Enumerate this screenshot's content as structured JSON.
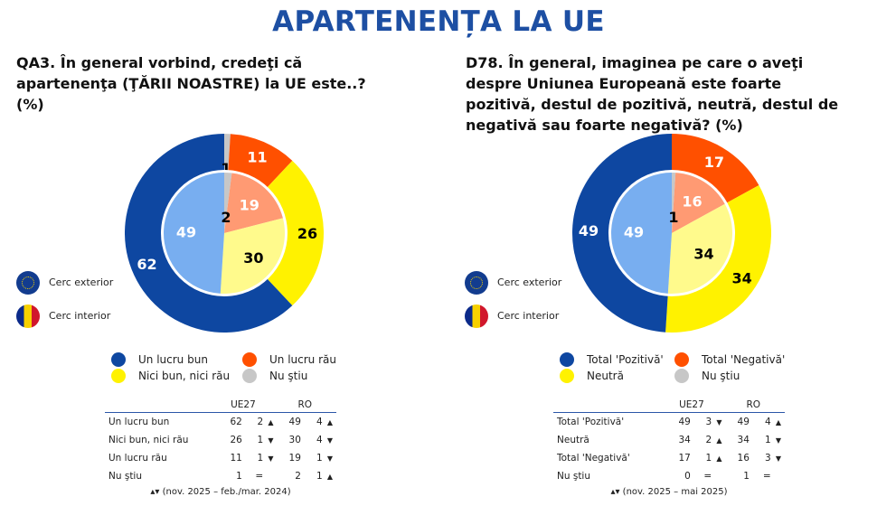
{
  "title": "APARTENENȚA LA UE",
  "ring_legend": {
    "outer": "Cerc exterior",
    "inner": "Cerc interior"
  },
  "colors": {
    "blue": "#0e47a1",
    "orange": "#ff5000",
    "yellow": "#fff200",
    "gray": "#c7c7c7",
    "light_blue": "#78aef0",
    "salmon": "#ff9a73",
    "light_yellow": "#fffa8c"
  },
  "left": {
    "question": "QA3. În general vorbind, credeţi că apartenenţa (ŢĂRII NOASTRE) la UE este..? (%)",
    "legend": [
      "Un lucru bun",
      "Un lucru rău",
      "Nici bun, nici rău",
      "Nu ştiu"
    ],
    "table": {
      "headers": [
        "UE27",
        "RO"
      ],
      "rows": [
        {
          "label": "Un lucru bun",
          "ue": "62",
          "ue_ch": "2",
          "ue_dir": "▲",
          "ro": "49",
          "ro_ch": "4",
          "ro_dir": "▲"
        },
        {
          "label": "Nici bun, nici rău",
          "ue": "26",
          "ue_ch": "1",
          "ue_dir": "▼",
          "ro": "30",
          "ro_ch": "4",
          "ro_dir": "▼"
        },
        {
          "label": "Un lucru rău",
          "ue": "11",
          "ue_ch": "1",
          "ue_dir": "▼",
          "ro": "19",
          "ro_ch": "1",
          "ro_dir": "▼"
        },
        {
          "label": "Nu ştiu",
          "ue": "1",
          "ue_ch": "=",
          "ue_dir": "",
          "ro": "2",
          "ro_ch": "1",
          "ro_dir": "▲"
        }
      ],
      "footnote": "▴▾ (nov. 2025 – feb./mar. 2024)"
    }
  },
  "right": {
    "question": "D78. În general, imaginea pe care o aveţi despre Uniunea Europeană este foarte pozitivă, destul de pozitivă, neutră, destul de negativă sau foarte negativă? (%)",
    "legend": [
      "Total 'Pozitivă'",
      "Total 'Negativă'",
      "Neutră",
      "Nu ştiu"
    ],
    "table": {
      "headers": [
        "UE27",
        "RO"
      ],
      "rows": [
        {
          "label": "Total 'Pozitivă'",
          "ue": "49",
          "ue_ch": "3",
          "ue_dir": "▼",
          "ro": "49",
          "ro_ch": "4",
          "ro_dir": "▲"
        },
        {
          "label": "Neutră",
          "ue": "34",
          "ue_ch": "2",
          "ue_dir": "▲",
          "ro": "34",
          "ro_ch": "1",
          "ro_dir": "▼"
        },
        {
          "label": "Total 'Negativă'",
          "ue": "17",
          "ue_ch": "1",
          "ue_dir": "▲",
          "ro": "16",
          "ro_ch": "3",
          "ro_dir": "▼"
        },
        {
          "label": "Nu ştiu",
          "ue": "0",
          "ue_ch": "=",
          "ue_dir": "",
          "ro": "1",
          "ro_ch": "=",
          "ro_dir": ""
        }
      ],
      "footnote": "▴▾ (nov. 2025 – mai 2025)"
    }
  },
  "chart_data": [
    {
      "type": "pie",
      "variant": "double-donut",
      "categories": [
        "Nu ştiu",
        "Un lucru rău",
        "Nici bun, nici rău",
        "Un lucru bun"
      ],
      "series": [
        {
          "name": "Cerc exterior",
          "values": [
            1,
            11,
            26,
            62
          ]
        },
        {
          "name": "Cerc interior",
          "values": [
            2,
            19,
            30,
            49
          ]
        }
      ]
    },
    {
      "type": "pie",
      "variant": "double-donut",
      "categories": [
        "Nu ştiu",
        "Total 'Negativă'",
        "Neutră",
        "Total 'Pozitivă'"
      ],
      "series": [
        {
          "name": "Cerc exterior",
          "values": [
            0,
            17,
            34,
            49
          ]
        },
        {
          "name": "Cerc interior",
          "values": [
            1,
            16,
            34,
            49
          ]
        }
      ]
    }
  ]
}
